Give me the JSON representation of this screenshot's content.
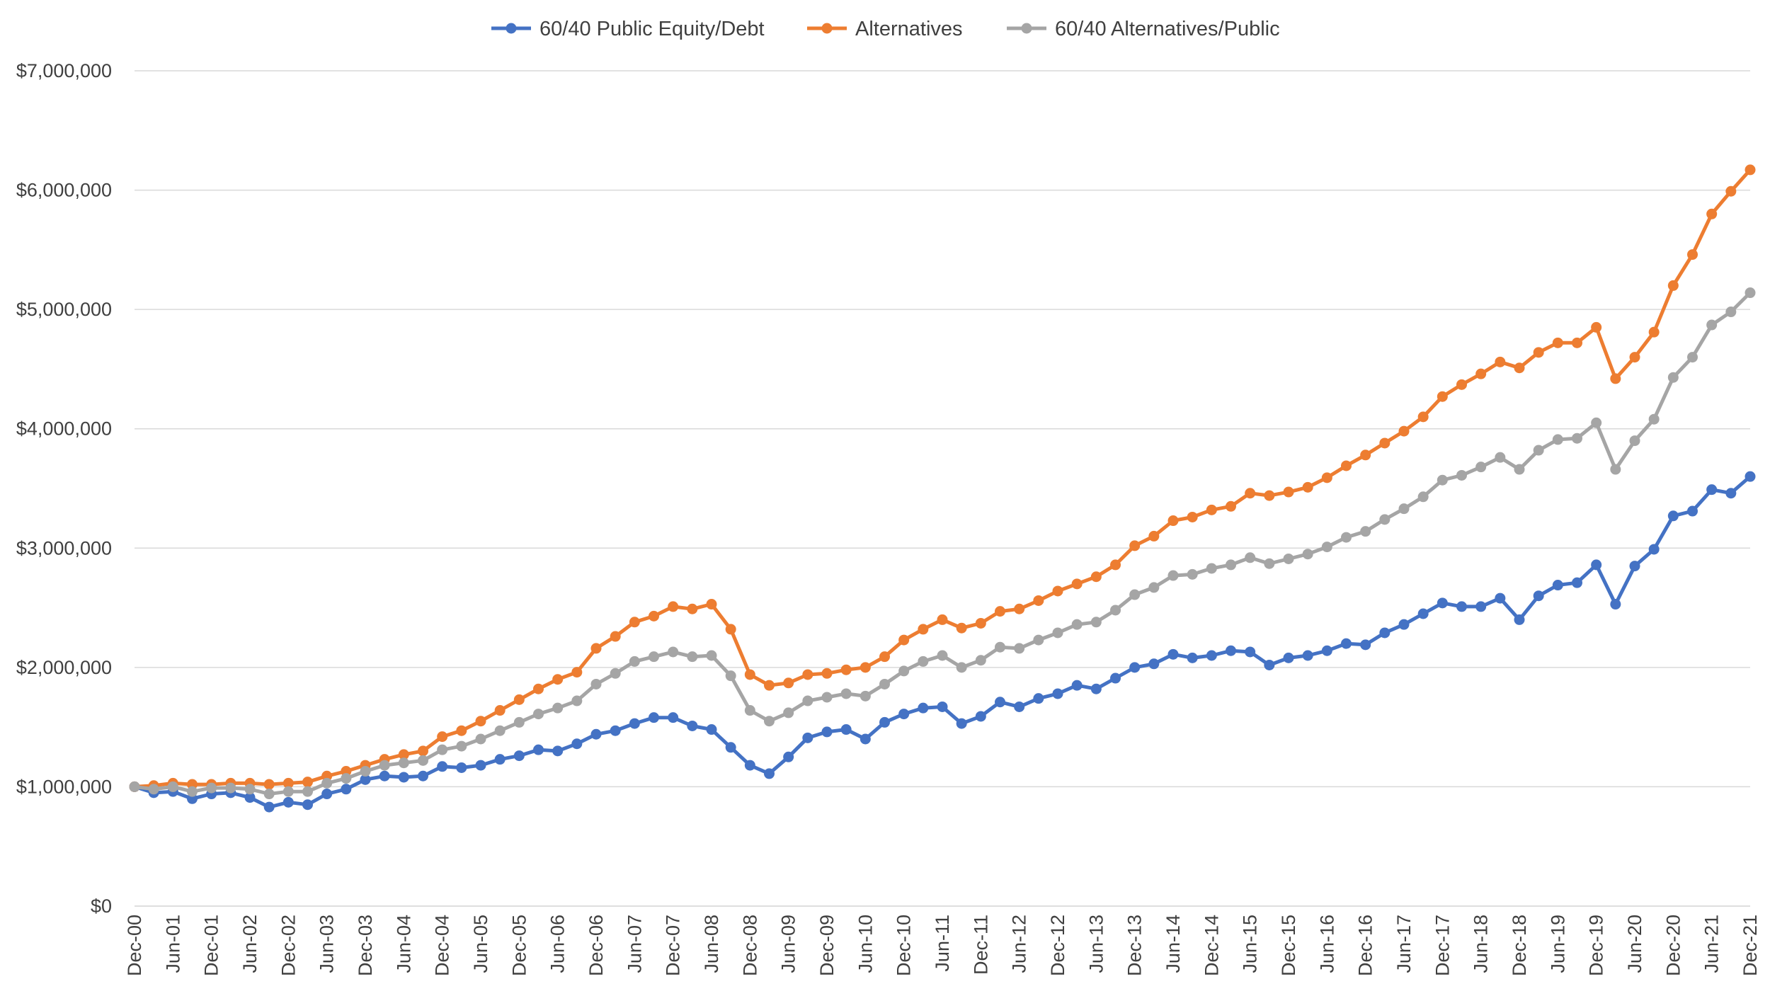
{
  "chart_data": {
    "type": "line",
    "title": "",
    "xlabel": "",
    "ylabel": "",
    "ylim": [
      0,
      7000000
    ],
    "y_ticks": [
      0,
      1000000,
      2000000,
      3000000,
      4000000,
      5000000,
      6000000,
      7000000
    ],
    "y_tick_labels": [
      "$0",
      "$1,000,000",
      "$2,000,000",
      "$3,000,000",
      "$4,000,000",
      "$5,000,000",
      "$6,000,000",
      "$7,000,000"
    ],
    "x_tick_labels": [
      "Dec-00",
      "Jun-01",
      "Dec-01",
      "Jun-02",
      "Dec-02",
      "Jun-03",
      "Dec-03",
      "Jun-04",
      "Dec-04",
      "Jun-05",
      "Dec-05",
      "Jun-06",
      "Dec-06",
      "Jun-07",
      "Dec-07",
      "Jun-08",
      "Dec-08",
      "Jun-09",
      "Dec-09",
      "Jun-10",
      "Dec-10",
      "Jun-11",
      "Dec-11",
      "Jun-12",
      "Dec-12",
      "Jun-13",
      "Dec-13",
      "Jun-14",
      "Dec-14",
      "Jun-15",
      "Dec-15",
      "Jun-16",
      "Dec-16",
      "Jun-17",
      "Dec-17",
      "Jun-18",
      "Dec-18",
      "Jun-19",
      "Dec-19",
      "Jun-20",
      "Dec-20",
      "Jun-21",
      "Dec-21"
    ],
    "x_period": "quarterly, Dec-00 to Dec-21",
    "grid": "horizontal",
    "legend_position": "top-center",
    "series": [
      {
        "name": "60/40 Public Equity/Debt",
        "color": "#4472C4",
        "values": [
          1000000,
          950000,
          960000,
          900000,
          940000,
          950000,
          910000,
          830000,
          870000,
          850000,
          940000,
          980000,
          1060000,
          1090000,
          1080000,
          1090000,
          1170000,
          1160000,
          1180000,
          1230000,
          1260000,
          1310000,
          1300000,
          1360000,
          1440000,
          1470000,
          1530000,
          1580000,
          1580000,
          1510000,
          1480000,
          1330000,
          1180000,
          1110000,
          1250000,
          1410000,
          1460000,
          1480000,
          1400000,
          1540000,
          1610000,
          1660000,
          1670000,
          1530000,
          1590000,
          1710000,
          1670000,
          1740000,
          1780000,
          1850000,
          1820000,
          1910000,
          2000000,
          2030000,
          2110000,
          2080000,
          2100000,
          2140000,
          2130000,
          2020000,
          2080000,
          2100000,
          2140000,
          2200000,
          2190000,
          2290000,
          2360000,
          2450000,
          2540000,
          2510000,
          2510000,
          2580000,
          2400000,
          2600000,
          2690000,
          2710000,
          2860000,
          2530000,
          2850000,
          2990000,
          3270000,
          3310000,
          3490000,
          3460000,
          3600000
        ]
      },
      {
        "name": "Alternatives",
        "color": "#ED7D31",
        "values": [
          1000000,
          1010000,
          1030000,
          1020000,
          1020000,
          1030000,
          1030000,
          1020000,
          1030000,
          1040000,
          1090000,
          1130000,
          1180000,
          1230000,
          1270000,
          1300000,
          1420000,
          1470000,
          1550000,
          1640000,
          1730000,
          1820000,
          1900000,
          1960000,
          2160000,
          2260000,
          2380000,
          2430000,
          2510000,
          2490000,
          2530000,
          2320000,
          1940000,
          1850000,
          1870000,
          1940000,
          1950000,
          1980000,
          2000000,
          2090000,
          2230000,
          2320000,
          2400000,
          2330000,
          2370000,
          2470000,
          2490000,
          2560000,
          2640000,
          2700000,
          2760000,
          2860000,
          3020000,
          3100000,
          3230000,
          3260000,
          3320000,
          3350000,
          3460000,
          3440000,
          3470000,
          3510000,
          3590000,
          3690000,
          3780000,
          3880000,
          3980000,
          4100000,
          4270000,
          4370000,
          4460000,
          4560000,
          4510000,
          4640000,
          4720000,
          4720000,
          4850000,
          4420000,
          4600000,
          4810000,
          5200000,
          5460000,
          5800000,
          5990000,
          6170000
        ]
      },
      {
        "name": "60/40 Alternatives/Public",
        "color": "#A5A5A5",
        "values": [
          1000000,
          980000,
          1000000,
          960000,
          990000,
          990000,
          980000,
          940000,
          960000,
          960000,
          1030000,
          1070000,
          1130000,
          1180000,
          1200000,
          1220000,
          1310000,
          1340000,
          1400000,
          1470000,
          1540000,
          1610000,
          1660000,
          1720000,
          1860000,
          1950000,
          2050000,
          2090000,
          2130000,
          2090000,
          2100000,
          1930000,
          1640000,
          1550000,
          1620000,
          1720000,
          1750000,
          1780000,
          1760000,
          1860000,
          1970000,
          2050000,
          2100000,
          2000000,
          2060000,
          2170000,
          2160000,
          2230000,
          2290000,
          2360000,
          2380000,
          2480000,
          2610000,
          2670000,
          2770000,
          2780000,
          2830000,
          2860000,
          2920000,
          2870000,
          2910000,
          2950000,
          3010000,
          3090000,
          3140000,
          3240000,
          3330000,
          3430000,
          3570000,
          3610000,
          3680000,
          3760000,
          3660000,
          3820000,
          3910000,
          3920000,
          4050000,
          3660000,
          3900000,
          4080000,
          4430000,
          4600000,
          4870000,
          4980000,
          5140000
        ]
      }
    ]
  }
}
